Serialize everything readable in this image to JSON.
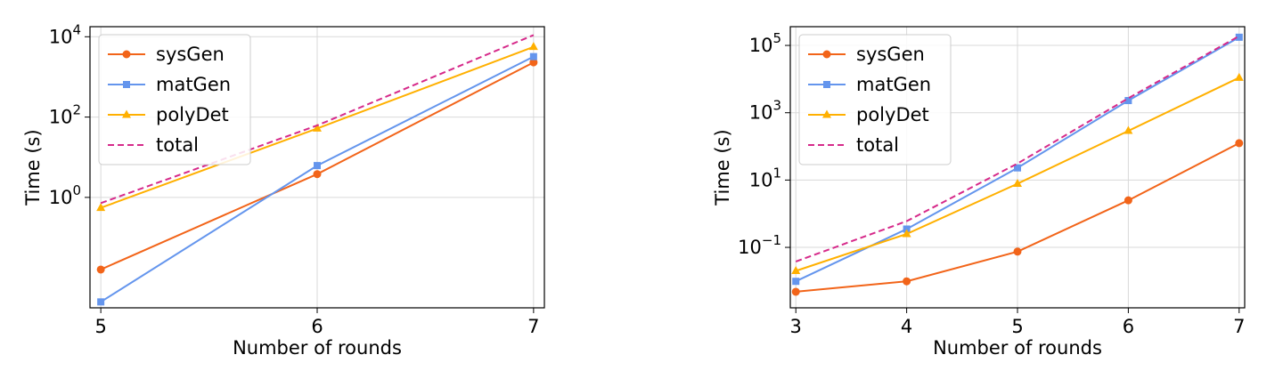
{
  "chart_data": [
    {
      "type": "line",
      "xlabel": "Number of rounds",
      "ylabel": "Time (s)",
      "yscale": "log",
      "grid": true,
      "legend_position": "top-left",
      "x": [
        5,
        6,
        7
      ],
      "xlim": [
        4.95,
        7.05
      ],
      "ylim": [
        0.00178,
        17800
      ],
      "ytick_exponents": [
        0,
        2,
        4
      ],
      "series": [
        {
          "name": "sysGen",
          "color": "#f26419",
          "marker": "circle",
          "dash": "solid",
          "values": [
            0.016,
            3.8,
            2300
          ]
        },
        {
          "name": "matGen",
          "color": "#6495ed",
          "marker": "square",
          "dash": "solid",
          "values": [
            0.0025,
            6.2,
            3200
          ]
        },
        {
          "name": "polyDet",
          "color": "#ffb000",
          "marker": "triangle",
          "dash": "solid",
          "values": [
            0.55,
            52,
            5600
          ]
        },
        {
          "name": "total",
          "color": "#d62a8a",
          "marker": "none",
          "dash": "dashed",
          "values": [
            0.72,
            62,
            11000
          ]
        }
      ]
    },
    {
      "type": "line",
      "xlabel": "Number of rounds",
      "ylabel": "Time (s)",
      "yscale": "log",
      "grid": true,
      "legend_position": "top-left",
      "x": [
        3,
        4,
        5,
        6,
        7
      ],
      "xlim": [
        2.95,
        7.05
      ],
      "ylim": [
        0.0016,
        360000
      ],
      "ytick_exponents": [
        -1,
        1,
        3,
        5
      ],
      "series": [
        {
          "name": "sysGen",
          "color": "#f26419",
          "marker": "circle",
          "dash": "solid",
          "values": [
            0.0048,
            0.0098,
            0.075,
            2.5,
            125
          ]
        },
        {
          "name": "matGen",
          "color": "#6495ed",
          "marker": "square",
          "dash": "solid",
          "values": [
            0.0098,
            0.35,
            23,
            2300,
            175000
          ]
        },
        {
          "name": "polyDet",
          "color": "#ffb000",
          "marker": "triangle",
          "dash": "solid",
          "values": [
            0.02,
            0.25,
            7.8,
            290,
            11000
          ]
        },
        {
          "name": "total",
          "color": "#d62a8a",
          "marker": "none",
          "dash": "dashed",
          "values": [
            0.038,
            0.6,
            31,
            2700,
            190000
          ]
        }
      ]
    }
  ]
}
